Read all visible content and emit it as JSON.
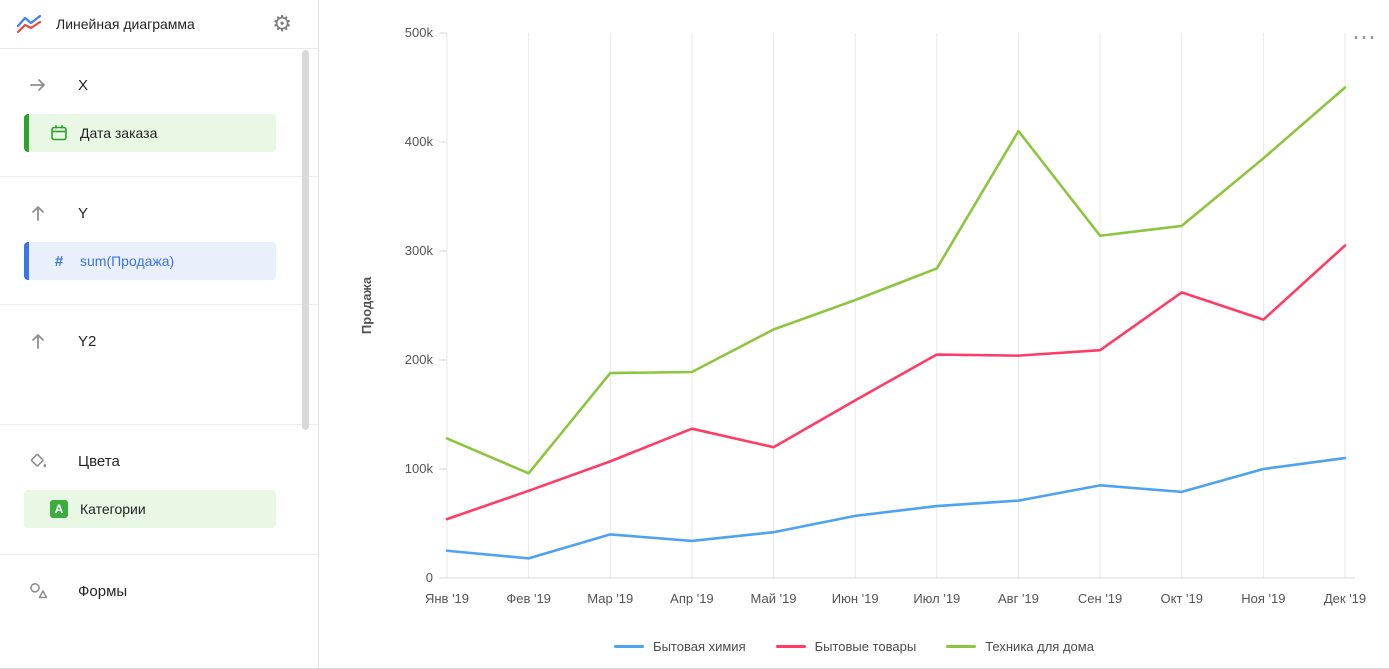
{
  "colors": {
    "series_blue": "#4DA2F1",
    "series_red": "#FF3D64",
    "series_green": "#8CC63F",
    "green_field_bg": "#E9F7E5",
    "green_accent": "#2DA32D",
    "blue_field_bg": "#E9F0FC",
    "blue_accent": "#3B73E8",
    "gridline": "#e9e9e9",
    "axis_text": "#545454"
  },
  "icons": {
    "gear": "⚙",
    "ellipsis": "⋯",
    "hash": "#",
    "a_badge": "A"
  },
  "sidebar": {
    "title": "Линейная диаграмма",
    "sections": {
      "x": {
        "label": "X",
        "field": "Дата заказа"
      },
      "y": {
        "label": "Y",
        "field": "sum(Продажа)"
      },
      "y2": {
        "label": "Y2"
      },
      "colors": {
        "label": "Цвета",
        "field": "Категории"
      },
      "shapes": {
        "label": "Формы"
      }
    }
  },
  "chart_data": {
    "type": "line",
    "title": "",
    "xlabel": "",
    "ylabel": "Продажа",
    "ylim": [
      0,
      500000
    ],
    "ytick_labels": [
      "0",
      "100k",
      "200k",
      "300k",
      "400k",
      "500k"
    ],
    "grid": "vertical-only",
    "legend_position": "bottom",
    "x": [
      "Янв '19",
      "Фев '19",
      "Мар '19",
      "Апр '19",
      "Май '19",
      "Июн '19",
      "Июл '19",
      "Авг '19",
      "Сен '19",
      "Окт '19",
      "Ноя '19",
      "Дек '19"
    ],
    "series": [
      {
        "name": "Бытовая химия",
        "color": "#4DA2F1",
        "values": [
          25000,
          18000,
          40000,
          34000,
          42000,
          57000,
          66000,
          71000,
          85000,
          79000,
          100000,
          110000
        ]
      },
      {
        "name": "Бытовые товары",
        "color": "#FF3D64",
        "values": [
          54000,
          80000,
          107000,
          137000,
          120000,
          163000,
          205000,
          204000,
          209000,
          262000,
          237000,
          305000
        ]
      },
      {
        "name": "Техника для дома",
        "color": "#8CC63F",
        "values": [
          128000,
          96000,
          188000,
          189000,
          228000,
          255000,
          284000,
          410000,
          314000,
          323000,
          385000,
          450000
        ]
      }
    ]
  }
}
